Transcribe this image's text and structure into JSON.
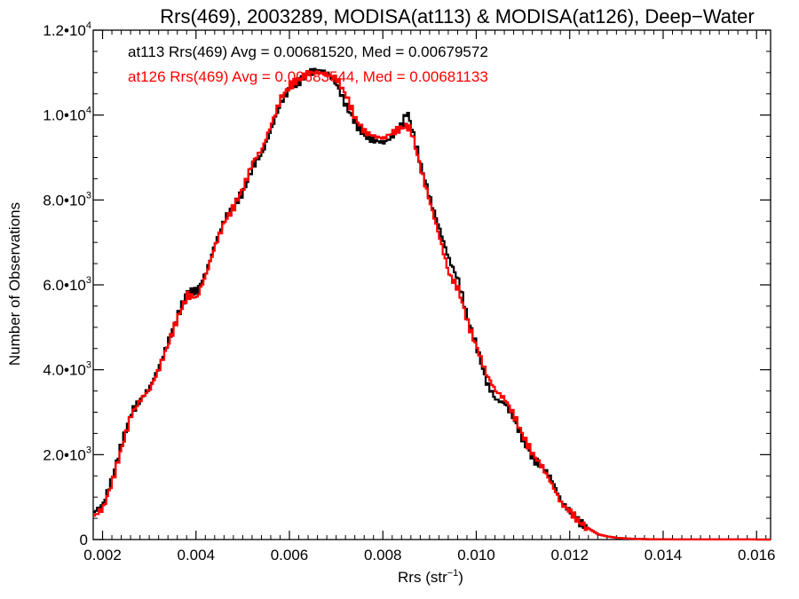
{
  "chart_data": {
    "type": "line",
    "title": "Rrs(469), 2003289, MODISA(at113) & MODISA(at126), Deep−Water",
    "xlabel_main": "Rrs (str",
    "xlabel_sup": "−1",
    "xlabel_end": ")",
    "ylabel": "Number of Observations",
    "xlim": [
      0.0018,
      0.0163
    ],
    "ylim": [
      0,
      12000
    ],
    "xticks": [
      {
        "value": 0.002,
        "label": "0.002"
      },
      {
        "value": 0.004,
        "label": "0.004"
      },
      {
        "value": 0.006,
        "label": "0.006"
      },
      {
        "value": 0.008,
        "label": "0.008"
      },
      {
        "value": 0.01,
        "label": "0.010"
      },
      {
        "value": 0.012,
        "label": "0.012"
      },
      {
        "value": 0.014,
        "label": "0.014"
      },
      {
        "value": 0.016,
        "label": "0.016"
      }
    ],
    "yticks": [
      {
        "value": 0,
        "mant": "0",
        "exp": ""
      },
      {
        "value": 2000,
        "mant": "2.0•10",
        "exp": "3"
      },
      {
        "value": 4000,
        "mant": "4.0•10",
        "exp": "3"
      },
      {
        "value": 6000,
        "mant": "6.0•10",
        "exp": "3"
      },
      {
        "value": 8000,
        "mant": "8.0•10",
        "exp": "3"
      },
      {
        "value": 10000,
        "mant": "1.0•10",
        "exp": "4"
      },
      {
        "value": 12000,
        "mant": "1.2•10",
        "exp": "4"
      }
    ],
    "series": [
      {
        "label": "at113 Rrs(469) Avg = 0.00681520, Med = 0.00679572",
        "color": "#000000",
        "x": [
          0.0018,
          0.002,
          0.0022,
          0.0024,
          0.0026,
          0.0028,
          0.003,
          0.0032,
          0.0034,
          0.0036,
          0.0038,
          0.004,
          0.0042,
          0.0044,
          0.0046,
          0.0048,
          0.005,
          0.0052,
          0.0054,
          0.0056,
          0.0058,
          0.006,
          0.0062,
          0.0064,
          0.0066,
          0.0068,
          0.007,
          0.0072,
          0.0074,
          0.0076,
          0.0078,
          0.008,
          0.0082,
          0.0084,
          0.0085,
          0.0086,
          0.0088,
          0.009,
          0.0092,
          0.0094,
          0.0096,
          0.0098,
          0.01,
          0.0102,
          0.0104,
          0.0106,
          0.0108,
          0.011,
          0.0112,
          0.0114,
          0.0116,
          0.0118,
          0.012,
          0.0122,
          0.0124,
          0.0126,
          0.0128,
          0.013,
          0.0132,
          0.0134,
          0.0136,
          0.014,
          0.0145,
          0.015,
          0.0155,
          0.016,
          0.0163
        ],
        "y": [
          650,
          850,
          1500,
          2300,
          3000,
          3300,
          3600,
          4100,
          4700,
          5300,
          5850,
          5850,
          6300,
          7000,
          7550,
          7900,
          8200,
          8800,
          9100,
          9700,
          10300,
          10650,
          10800,
          11000,
          11050,
          11000,
          10700,
          10200,
          9800,
          9500,
          9400,
          9350,
          9500,
          9800,
          10100,
          9700,
          8800,
          8000,
          7300,
          6600,
          6100,
          5200,
          4500,
          3700,
          3300,
          3200,
          2800,
          2300,
          1900,
          1700,
          1400,
          900,
          650,
          400,
          250,
          120,
          70,
          40,
          25,
          15,
          10,
          6,
          4,
          3,
          2,
          1,
          1
        ]
      },
      {
        "label": "at126 Rrs(469) Avg = 0.00683544, Med = 0.00681133",
        "color": "#ff0000",
        "x": [
          0.0018,
          0.002,
          0.0022,
          0.0024,
          0.0026,
          0.0028,
          0.003,
          0.0032,
          0.0034,
          0.0036,
          0.0038,
          0.004,
          0.0042,
          0.0044,
          0.0046,
          0.0048,
          0.005,
          0.0052,
          0.0054,
          0.0056,
          0.0058,
          0.006,
          0.0062,
          0.0064,
          0.0066,
          0.0068,
          0.007,
          0.0072,
          0.0074,
          0.0076,
          0.0078,
          0.008,
          0.0082,
          0.0084,
          0.0085,
          0.0086,
          0.0088,
          0.009,
          0.0092,
          0.0094,
          0.0096,
          0.0098,
          0.01,
          0.0102,
          0.0104,
          0.0106,
          0.0108,
          0.011,
          0.0112,
          0.0114,
          0.0116,
          0.0118,
          0.012,
          0.0122,
          0.0124,
          0.0126,
          0.0128,
          0.013,
          0.0132,
          0.0134,
          0.0136,
          0.014,
          0.0145,
          0.015,
          0.0155,
          0.016,
          0.0163
        ],
        "y": [
          550,
          750,
          1400,
          2200,
          2950,
          3300,
          3550,
          4050,
          4650,
          5250,
          5750,
          5700,
          6250,
          6950,
          7500,
          7850,
          8300,
          8900,
          9200,
          9800,
          10400,
          10700,
          10850,
          11000,
          11000,
          10950,
          10850,
          10450,
          9900,
          9600,
          9500,
          9450,
          9600,
          9700,
          9750,
          9600,
          8700,
          7900,
          7100,
          6250,
          5900,
          5100,
          4500,
          3900,
          3500,
          3300,
          2900,
          2400,
          2000,
          1700,
          1300,
          850,
          650,
          400,
          250,
          120,
          70,
          40,
          25,
          15,
          10,
          6,
          4,
          3,
          2,
          1,
          1
        ]
      }
    ]
  }
}
